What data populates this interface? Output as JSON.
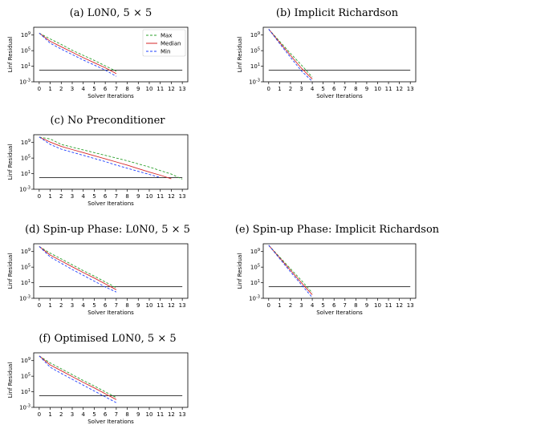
{
  "chart_data": [
    {
      "type": "line",
      "title": "(a) L0N0, 5 × 5",
      "xlabel": "Solver Iterations",
      "ylabel": "Linf Residual",
      "yscale": "log",
      "xlim": [
        -0.5,
        13.5
      ],
      "ylim_exp": [
        -3,
        11
      ],
      "xticks": [
        "0",
        "1",
        "2",
        "3",
        "4",
        "5",
        "6",
        "7",
        "8",
        "9",
        "10",
        "11",
        "12",
        "13"
      ],
      "yticks": [
        "10^9",
        "10^5",
        "10^1",
        "10^-3"
      ],
      "legend": {
        "placement": "upper right",
        "entries": [
          "Max",
          "Median",
          "Min"
        ]
      },
      "threshold_exp": 0,
      "series": [
        {
          "name": "Max",
          "color": "#2ca02c",
          "dash": "dashed",
          "x": [
            0,
            1,
            2,
            3,
            4,
            5,
            6,
            7
          ],
          "y_exp": [
            9.5,
            8.0,
            6.6,
            5.1,
            3.8,
            2.5,
            1.1,
            -0.3
          ]
        },
        {
          "name": "Median",
          "color": "#d62728",
          "dash": "solid",
          "x": [
            0,
            1,
            2,
            3,
            4,
            5,
            6,
            7
          ],
          "y_exp": [
            9.5,
            7.4,
            6.0,
            4.6,
            3.2,
            1.9,
            0.6,
            -0.9
          ]
        },
        {
          "name": "Min",
          "color": "#1f3fff",
          "dash": "dashed",
          "x": [
            0,
            1,
            2,
            3,
            4,
            5,
            6,
            7
          ],
          "y_exp": [
            9.5,
            6.9,
            5.4,
            4.0,
            2.6,
            1.3,
            0.0,
            -1.6
          ]
        }
      ]
    },
    {
      "type": "line",
      "title": "(b) Implicit Richardson",
      "xlabel": "Solver Iterations",
      "ylabel": "Linf Residual",
      "yscale": "log",
      "xlim": [
        -0.5,
        13.5
      ],
      "ylim_exp": [
        -3,
        11
      ],
      "xticks": [
        "0",
        "1",
        "2",
        "3",
        "4",
        "5",
        "6",
        "7",
        "8",
        "9",
        "10",
        "11",
        "12",
        "13"
      ],
      "yticks": [
        "10^9",
        "10^5",
        "10^1",
        "10^-3"
      ],
      "threshold_exp": 0,
      "series": [
        {
          "name": "Max",
          "color": "#2ca02c",
          "dash": "dashed",
          "x": [
            0,
            1,
            2,
            3,
            4
          ],
          "y_exp": [
            10.5,
            7.4,
            4.3,
            1.3,
            -1.8
          ]
        },
        {
          "name": "Median",
          "color": "#d62728",
          "dash": "solid",
          "x": [
            0,
            1,
            2,
            3,
            4
          ],
          "y_exp": [
            10.5,
            7.1,
            3.8,
            0.5,
            -2.3
          ]
        },
        {
          "name": "Min",
          "color": "#1f3fff",
          "dash": "dashed",
          "x": [
            0,
            1,
            2,
            3,
            4
          ],
          "y_exp": [
            10.5,
            6.8,
            3.3,
            -0.2,
            -2.9
          ]
        }
      ]
    },
    {
      "type": "line",
      "title": "(c) No Preconditioner",
      "xlabel": "Solver Iterations",
      "ylabel": "Linf Residual",
      "yscale": "log",
      "xlim": [
        -0.5,
        13.5
      ],
      "ylim_exp": [
        -3,
        11
      ],
      "xticks": [
        "0",
        "1",
        "2",
        "3",
        "4",
        "5",
        "6",
        "7",
        "8",
        "9",
        "10",
        "11",
        "12",
        "13"
      ],
      "yticks": [
        "10^9",
        "10^5",
        "10^1",
        "10^-3"
      ],
      "threshold_exp": 0,
      "series": [
        {
          "name": "Max",
          "color": "#2ca02c",
          "dash": "dashed",
          "x": [
            0,
            1,
            2,
            3,
            4,
            5,
            6,
            7,
            8,
            9,
            10,
            11,
            12,
            13
          ],
          "y_exp": [
            10.4,
            9.9,
            8.5,
            7.8,
            7.1,
            6.4,
            5.7,
            5.0,
            4.3,
            3.5,
            2.7,
            1.8,
            0.9,
            -0.4
          ]
        },
        {
          "name": "Median",
          "color": "#d62728",
          "dash": "solid",
          "x": [
            0,
            1,
            2,
            3,
            4,
            5,
            6,
            7,
            8,
            9,
            10,
            11,
            12
          ],
          "y_exp": [
            10.4,
            9.1,
            8.0,
            7.2,
            6.4,
            5.6,
            4.8,
            4.0,
            3.2,
            2.3,
            1.4,
            0.6,
            -0.3
          ]
        },
        {
          "name": "Min",
          "color": "#1f3fff",
          "dash": "dashed",
          "x": [
            0,
            1,
            2,
            3,
            4,
            5,
            6,
            7,
            8,
            9,
            10,
            11
          ],
          "y_exp": [
            10.4,
            8.5,
            7.3,
            6.5,
            5.7,
            4.9,
            4.1,
            3.2,
            2.4,
            1.6,
            0.8,
            0.0
          ]
        }
      ]
    },
    {
      "type": "line",
      "title": "(d) Spin-up Phase: L0N0, 5 × 5",
      "xlabel": "Solver Iterations",
      "ylabel": "Linf Residual",
      "yscale": "log",
      "xlim": [
        -0.5,
        13.5
      ],
      "ylim_exp": [
        -3,
        11
      ],
      "xticks": [
        "0",
        "1",
        "2",
        "3",
        "4",
        "5",
        "6",
        "7",
        "8",
        "9",
        "10",
        "11",
        "12",
        "13"
      ],
      "yticks": [
        "10^9",
        "10^5",
        "10^1",
        "10^-3"
      ],
      "threshold_exp": 0,
      "series": [
        {
          "name": "Max",
          "color": "#2ca02c",
          "dash": "dashed",
          "x": [
            0,
            1,
            2,
            3,
            4,
            5,
            6,
            7
          ],
          "y_exp": [
            10.3,
            8.6,
            7.1,
            5.6,
            4.1,
            2.7,
            1.2,
            -0.3
          ]
        },
        {
          "name": "Median",
          "color": "#d62728",
          "dash": "solid",
          "x": [
            0,
            1,
            2,
            3,
            4,
            5,
            6,
            7
          ],
          "y_exp": [
            10.3,
            8.1,
            6.6,
            5.1,
            3.6,
            2.2,
            0.7,
            -0.8
          ]
        },
        {
          "name": "Min",
          "color": "#1f3fff",
          "dash": "dashed",
          "x": [
            0,
            1,
            2,
            3,
            4,
            5,
            6,
            7
          ],
          "y_exp": [
            10.3,
            7.6,
            6.0,
            4.4,
            2.9,
            1.4,
            -0.1,
            -1.4
          ]
        }
      ]
    },
    {
      "type": "line",
      "title": "(e) Spin-up Phase: Implicit Richardson",
      "xlabel": "Solver Iterations",
      "ylabel": "Linf Residual",
      "yscale": "log",
      "xlim": [
        -0.5,
        13.5
      ],
      "ylim_exp": [
        -3,
        11
      ],
      "xticks": [
        "0",
        "1",
        "2",
        "3",
        "4",
        "5",
        "6",
        "7",
        "8",
        "9",
        "10",
        "11",
        "12",
        "13"
      ],
      "yticks": [
        "10^9",
        "10^5",
        "10^1",
        "10^-3"
      ],
      "threshold_exp": 0,
      "series": [
        {
          "name": "Max",
          "color": "#2ca02c",
          "dash": "dashed",
          "x": [
            0,
            1,
            2,
            3,
            4
          ],
          "y_exp": [
            10.6,
            7.6,
            4.6,
            1.6,
            -1.6
          ]
        },
        {
          "name": "Median",
          "color": "#d62728",
          "dash": "solid",
          "x": [
            0,
            1,
            2,
            3,
            4
          ],
          "y_exp": [
            10.6,
            7.4,
            4.2,
            1.0,
            -2.1
          ]
        },
        {
          "name": "Min",
          "color": "#1f3fff",
          "dash": "dashed",
          "x": [
            0,
            1,
            2,
            3,
            4
          ],
          "y_exp": [
            10.6,
            7.2,
            3.8,
            0.5,
            -2.8
          ]
        }
      ]
    },
    {
      "type": "line",
      "title": "(f) Optimised L0N0, 5 × 5",
      "xlabel": "Solver Iterations",
      "ylabel": "Linf Residual",
      "yscale": "log",
      "xlim": [
        -0.5,
        13.5
      ],
      "ylim_exp": [
        -3,
        11
      ],
      "xticks": [
        "0",
        "1",
        "2",
        "3",
        "4",
        "5",
        "6",
        "7",
        "8",
        "9",
        "10",
        "11",
        "12",
        "13"
      ],
      "yticks": [
        "10^9",
        "10^5",
        "10^1",
        "10^-3"
      ],
      "threshold_exp": 0,
      "series": [
        {
          "name": "Max",
          "color": "#2ca02c",
          "dash": "dashed",
          "x": [
            0,
            1,
            2,
            3,
            4,
            5,
            6,
            7
          ],
          "y_exp": [
            10.2,
            8.4,
            6.9,
            5.4,
            3.9,
            2.5,
            1.0,
            -0.5
          ]
        },
        {
          "name": "Median",
          "color": "#d62728",
          "dash": "solid",
          "x": [
            0,
            1,
            2,
            3,
            4,
            5,
            6,
            7
          ],
          "y_exp": [
            10.2,
            7.9,
            6.4,
            4.9,
            3.4,
            2.0,
            0.5,
            -1.0
          ]
        },
        {
          "name": "Min",
          "color": "#1f3fff",
          "dash": "dashed",
          "x": [
            0,
            1,
            2,
            3,
            4,
            5,
            6,
            7
          ],
          "y_exp": [
            10.2,
            7.3,
            5.7,
            4.2,
            2.7,
            1.2,
            -0.3,
            -1.8
          ]
        }
      ]
    }
  ]
}
